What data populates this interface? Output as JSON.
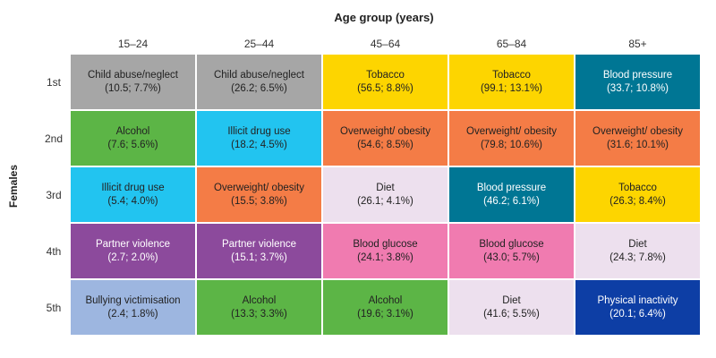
{
  "chart_data": {
    "type": "table",
    "title": "Age group (years)",
    "row_group_label": "Females",
    "columns": [
      "15–24",
      "25–44",
      "45–64",
      "65–84",
      "85+"
    ],
    "rows": [
      "1st",
      "2nd",
      "3rd",
      "4th",
      "5th"
    ],
    "cells": [
      [
        {
          "label": "Child abuse/neglect",
          "value": "(10.5; 7.7%)",
          "color": "#a6a6a6",
          "text_color": "#222222"
        },
        {
          "label": "Child abuse/neglect",
          "value": "(26.2; 6.5%)",
          "color": "#a6a6a6",
          "text_color": "#222222"
        },
        {
          "label": "Tobacco",
          "value": "(56.5; 8.8%)",
          "color": "#fdd500",
          "text_color": "#222222"
        },
        {
          "label": "Tobacco",
          "value": "(99.1; 13.1%)",
          "color": "#fdd500",
          "text_color": "#222222"
        },
        {
          "label": "Blood pressure",
          "value": "(33.7; 10.8%)",
          "color": "#007694",
          "text_color": "#ffffff"
        }
      ],
      [
        {
          "label": "Alcohol",
          "value": "(7.6; 5.6%)",
          "color": "#5cb546",
          "text_color": "#222222"
        },
        {
          "label": "Illicit drug use",
          "value": "(18.2; 4.5%)",
          "color": "#22c4f0",
          "text_color": "#222222"
        },
        {
          "label": "Overweight/ obesity",
          "value": "(54.6; 8.5%)",
          "color": "#f47c46",
          "text_color": "#222222"
        },
        {
          "label": "Overweight/ obesity",
          "value": "(79.8; 10.6%)",
          "color": "#f47c46",
          "text_color": "#222222"
        },
        {
          "label": "Overweight/ obesity",
          "value": "(31.6; 10.1%)",
          "color": "#f47c46",
          "text_color": "#222222"
        }
      ],
      [
        {
          "label": "Illicit drug use",
          "value": "(5.4; 4.0%)",
          "color": "#22c4f0",
          "text_color": "#222222"
        },
        {
          "label": "Overweight/ obesity",
          "value": "(15.5; 3.8%)",
          "color": "#f47c46",
          "text_color": "#222222"
        },
        {
          "label": "Diet",
          "value": "(26.1; 4.1%)",
          "color": "#ede0ee",
          "text_color": "#222222"
        },
        {
          "label": "Blood pressure",
          "value": "(46.2; 6.1%)",
          "color": "#007694",
          "text_color": "#ffffff"
        },
        {
          "label": "Tobacco",
          "value": "(26.3; 8.4%)",
          "color": "#fdd500",
          "text_color": "#222222"
        }
      ],
      [
        {
          "label": "Partner violence",
          "value": "(2.7; 2.0%)",
          "color": "#8c4a9c",
          "text_color": "#ffffff"
        },
        {
          "label": "Partner violence",
          "value": "(15.1; 3.7%)",
          "color": "#8c4a9c",
          "text_color": "#ffffff"
        },
        {
          "label": "Blood glucose",
          "value": "(24.1; 3.8%)",
          "color": "#f07bb0",
          "text_color": "#222222"
        },
        {
          "label": "Blood glucose",
          "value": "(43.0; 5.7%)",
          "color": "#f07bb0",
          "text_color": "#222222"
        },
        {
          "label": "Diet",
          "value": "(24.3; 7.8%)",
          "color": "#ede0ee",
          "text_color": "#222222"
        }
      ],
      [
        {
          "label": "Bullying victimisation",
          "value": "(2.4; 1.8%)",
          "color": "#9db6e0",
          "text_color": "#222222"
        },
        {
          "label": "Alcohol",
          "value": "(13.3; 3.3%)",
          "color": "#5cb546",
          "text_color": "#222222"
        },
        {
          "label": "Alcohol",
          "value": "(19.6; 3.1%)",
          "color": "#5cb546",
          "text_color": "#222222"
        },
        {
          "label": "Diet",
          "value": "(41.6; 5.5%)",
          "color": "#ede0ee",
          "text_color": "#222222"
        },
        {
          "label": "Physical inactivity",
          "value": "(20.1; 6.4%)",
          "color": "#0d3ea5",
          "text_color": "#ffffff"
        }
      ]
    ]
  }
}
